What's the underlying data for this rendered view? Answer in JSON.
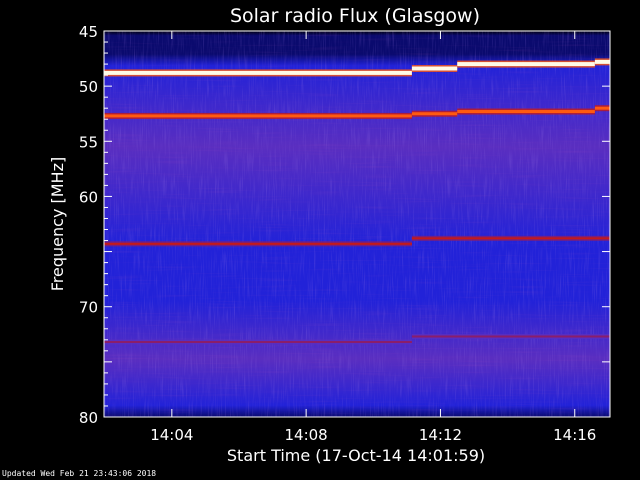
{
  "chart_data": {
    "type": "heatmap",
    "title": "Solar radio Flux (Glasgow)",
    "xlabel": "Start Time (17-Oct-14 14:01:59)",
    "ylabel": "Frequency [MHz]",
    "x_unit": "minutes after 14:00",
    "x_range": [
      1.98,
      17.05
    ],
    "ylim": [
      45,
      80
    ],
    "y_inverted": true,
    "x_ticks": [
      {
        "value": 4,
        "label": "14:04"
      },
      {
        "value": 8,
        "label": "14:08"
      },
      {
        "value": 12,
        "label": "14:12"
      },
      {
        "value": 16,
        "label": "14:16"
      }
    ],
    "y_ticks": [
      {
        "value": 45,
        "label": "45"
      },
      {
        "value": 50,
        "label": "50"
      },
      {
        "value": 55,
        "label": "55"
      },
      {
        "value": 60,
        "label": "60"
      },
      {
        "value": 65,
        "label": ""
      },
      {
        "value": 70,
        "label": "70"
      },
      {
        "value": 75,
        "label": ""
      },
      {
        "value": 80,
        "label": "80"
      }
    ],
    "colormap": [
      "#000010",
      "#0a0a6e",
      "#2222d8",
      "#5a2ec0",
      "#8a1e6a",
      "#c41a1a",
      "#ff5a10",
      "#ffd27a",
      "#fffbe6"
    ],
    "emission_bands": [
      {
        "t_start": 1.98,
        "t_end": 11.15,
        "freq": 48.8,
        "intensity": "saturated"
      },
      {
        "t_start": 11.15,
        "t_end": 12.5,
        "freq": 48.4,
        "intensity": "saturated"
      },
      {
        "t_start": 12.5,
        "t_end": 16.6,
        "freq": 48.0,
        "intensity": "saturated"
      },
      {
        "t_start": 16.6,
        "t_end": 17.05,
        "freq": 47.8,
        "intensity": "saturated"
      },
      {
        "t_start": 1.98,
        "t_end": 11.15,
        "freq": 52.7,
        "intensity": "high"
      },
      {
        "t_start": 11.15,
        "t_end": 12.5,
        "freq": 52.5,
        "intensity": "high"
      },
      {
        "t_start": 12.5,
        "t_end": 16.6,
        "freq": 52.3,
        "intensity": "high"
      },
      {
        "t_start": 16.6,
        "t_end": 17.05,
        "freq": 52.0,
        "intensity": "high"
      },
      {
        "t_start": 1.98,
        "t_end": 11.15,
        "freq": 64.3,
        "intensity": "medium"
      },
      {
        "t_start": 11.15,
        "t_end": 17.05,
        "freq": 63.8,
        "intensity": "medium"
      },
      {
        "t_start": 1.98,
        "t_end": 11.15,
        "freq": 73.2,
        "intensity": "low"
      },
      {
        "t_start": 11.15,
        "t_end": 17.05,
        "freq": 72.7,
        "intensity": "low"
      }
    ]
  },
  "footer": {
    "updated": "Updated Wed Feb 21 23:43:06 2018"
  }
}
